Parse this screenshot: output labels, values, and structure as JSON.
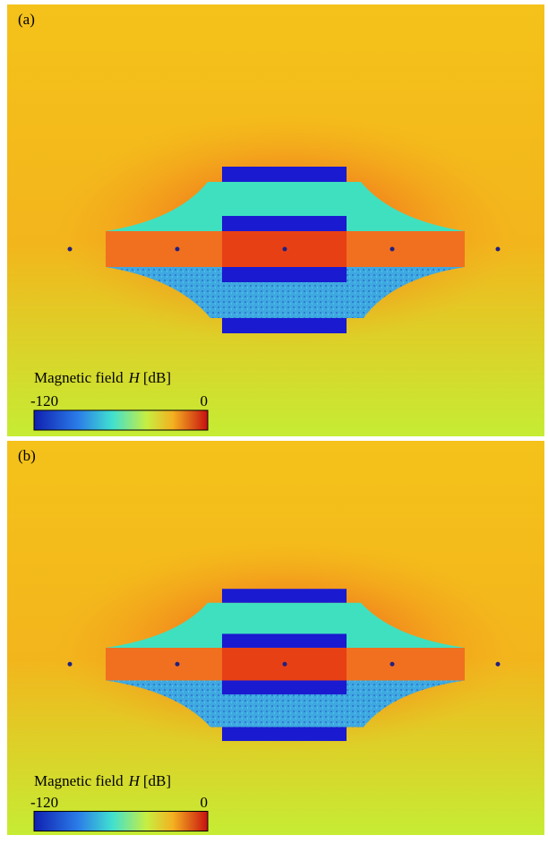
{
  "panels": [
    {
      "label": "(a)",
      "colorbar": {
        "title": "Magnetic field",
        "symbol": "H",
        "unit": "[dB]",
        "min": -120,
        "max": 0
      }
    },
    {
      "label": "(b)",
      "colorbar": {
        "title": "Magnetic field",
        "symbol": "H",
        "unit": "[dB]",
        "min": -120,
        "max": 0
      }
    }
  ]
}
